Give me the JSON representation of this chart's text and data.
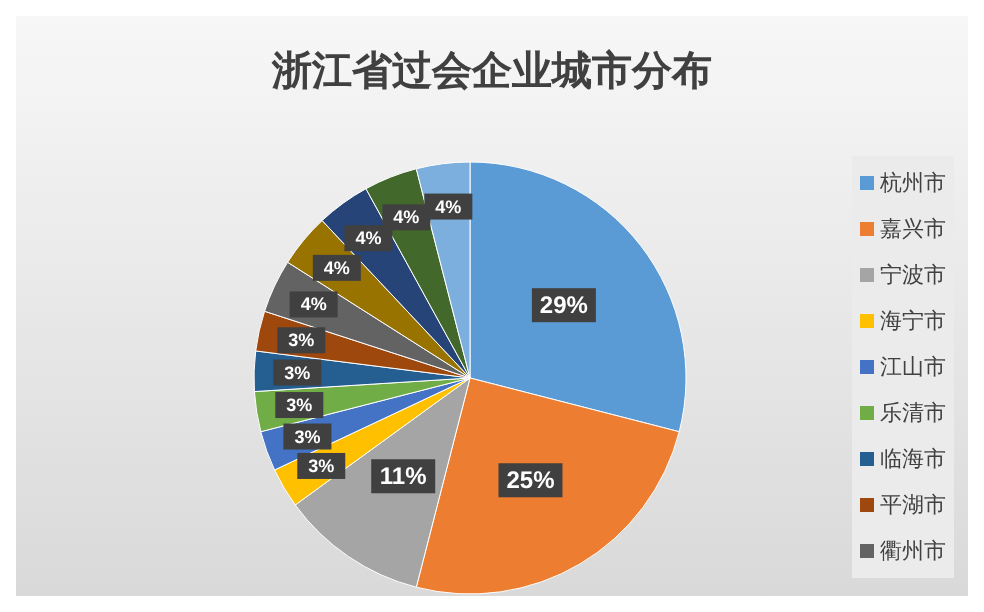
{
  "chart_data": {
    "type": "pie",
    "title": "浙江省过会企业城市分布",
    "categories": [
      "杭州市",
      "嘉兴市",
      "宁波市",
      "海宁市",
      "江山市",
      "乐清市",
      "临海市",
      "平湖市",
      "衢州市",
      null,
      null,
      null,
      null
    ],
    "values": [
      29,
      25,
      11,
      3,
      3,
      3,
      3,
      3,
      4,
      4,
      4,
      4,
      4
    ],
    "value_labels": [
      "29%",
      "25%",
      "11%",
      "3%",
      "3%",
      "3%",
      "3%",
      "3%",
      "4%",
      "4%",
      "4%",
      "4%",
      "4%"
    ],
    "colors": [
      "#5b9bd5",
      "#ed7d31",
      "#a5a5a5",
      "#ffc000",
      "#4472c4",
      "#70ad47",
      "#255e91",
      "#9e480e",
      "#636363",
      "#997300",
      "#264478",
      "#43682b",
      "#7cafdd"
    ],
    "legend": "right"
  }
}
